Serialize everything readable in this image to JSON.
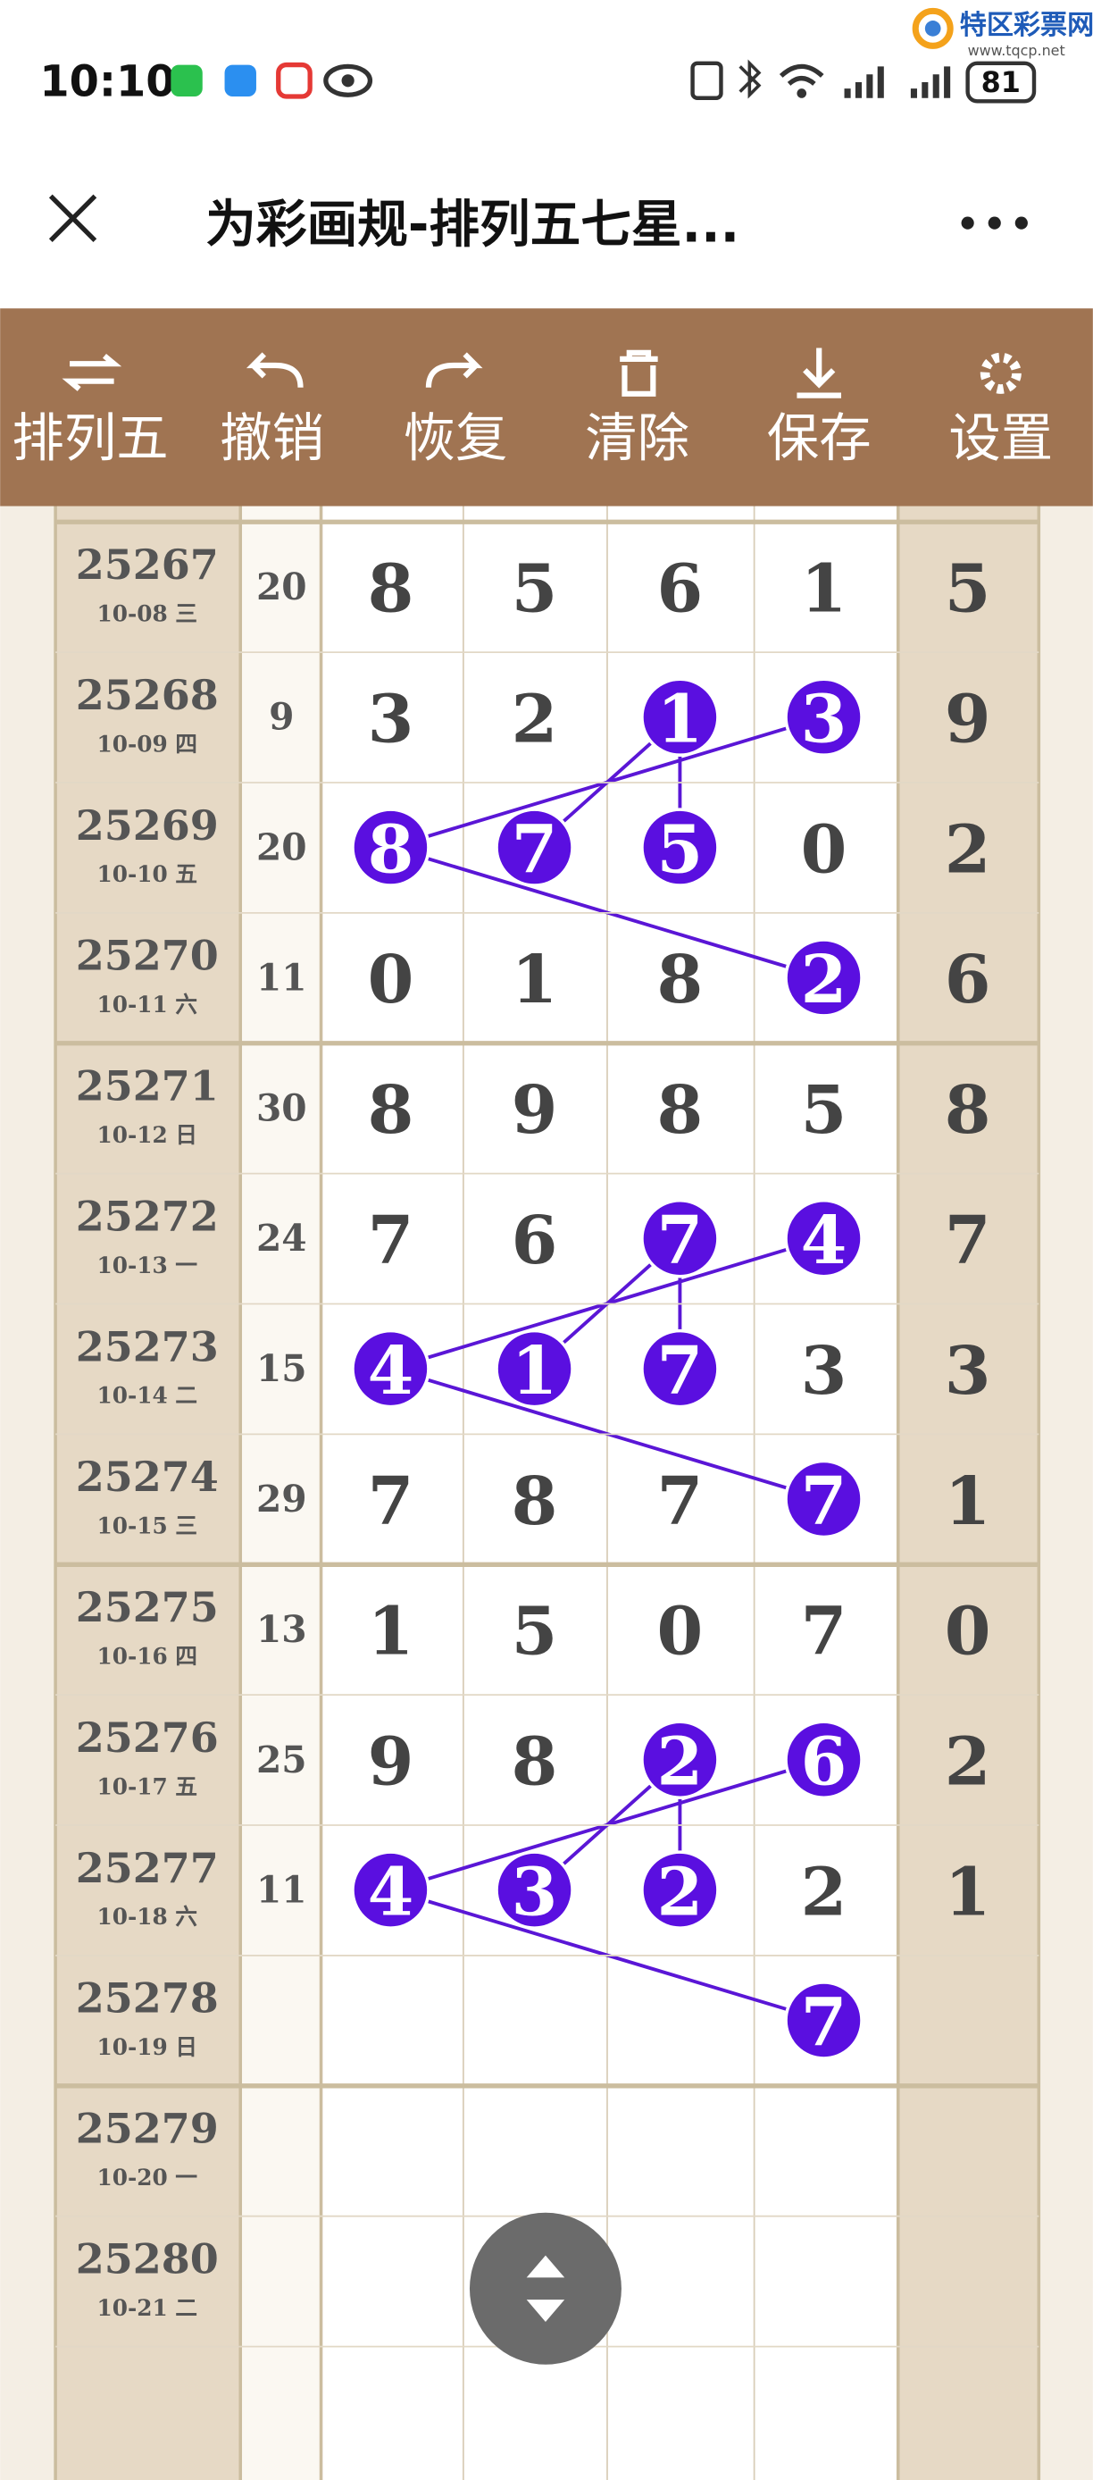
{
  "status_bar": {
    "time": "10:10",
    "battery": "81"
  },
  "watermark": {
    "name": "特区彩票网",
    "url": "www.tqcp.net"
  },
  "header": {
    "title": "为彩画规-排列五七星..."
  },
  "toolbar": [
    "排列五",
    "撤销",
    "恢复",
    "清除",
    "保存",
    "设置"
  ],
  "table": {
    "rows": [
      {
        "issue": "25267",
        "date": "10-08 三",
        "sum": 20,
        "digits": [
          8,
          5,
          6,
          1,
          5
        ],
        "circled": []
      },
      {
        "issue": "25268",
        "date": "10-09 四",
        "sum": 9,
        "digits": [
          3,
          2,
          1,
          3,
          9
        ],
        "circled": [
          2,
          3
        ]
      },
      {
        "issue": "25269",
        "date": "10-10 五",
        "sum": 20,
        "digits": [
          8,
          7,
          5,
          0,
          2
        ],
        "circled": [
          0,
          1,
          2
        ]
      },
      {
        "issue": "25270",
        "date": "10-11 六",
        "sum": 11,
        "digits": [
          0,
          1,
          8,
          2,
          6
        ],
        "circled": [
          3
        ]
      },
      {
        "issue": "25271",
        "date": "10-12 日",
        "sum": 30,
        "digits": [
          8,
          9,
          8,
          5,
          8
        ],
        "circled": []
      },
      {
        "issue": "25272",
        "date": "10-13 一",
        "sum": 24,
        "digits": [
          7,
          6,
          7,
          4,
          7
        ],
        "circled": [
          2,
          3
        ]
      },
      {
        "issue": "25273",
        "date": "10-14 二",
        "sum": 15,
        "digits": [
          4,
          1,
          7,
          3,
          3
        ],
        "circled": [
          0,
          1,
          2
        ]
      },
      {
        "issue": "25274",
        "date": "10-15 三",
        "sum": 29,
        "digits": [
          7,
          8,
          7,
          7,
          1
        ],
        "circled": [
          3
        ]
      },
      {
        "issue": "25275",
        "date": "10-16 四",
        "sum": 13,
        "digits": [
          1,
          5,
          0,
          7,
          0
        ],
        "circled": []
      },
      {
        "issue": "25276",
        "date": "10-17 五",
        "sum": 25,
        "digits": [
          9,
          8,
          2,
          6,
          2
        ],
        "circled": [
          2,
          3
        ]
      },
      {
        "issue": "25277",
        "date": "10-18 六",
        "sum": 11,
        "digits": [
          4,
          3,
          2,
          2,
          1
        ],
        "circled": [
          0,
          1,
          2
        ]
      },
      {
        "issue": "25278",
        "date": "10-19 日",
        "sum": null,
        "digits": [
          null,
          null,
          null,
          7,
          null
        ],
        "circled": [
          3
        ]
      },
      {
        "issue": "25279",
        "date": "10-20 一",
        "sum": null,
        "digits": [
          null,
          null,
          null,
          null,
          null
        ],
        "circled": []
      },
      {
        "issue": "25280",
        "date": "10-21 二",
        "sum": null,
        "digits": [
          null,
          null,
          null,
          null,
          null
        ],
        "circled": []
      }
    ]
  }
}
